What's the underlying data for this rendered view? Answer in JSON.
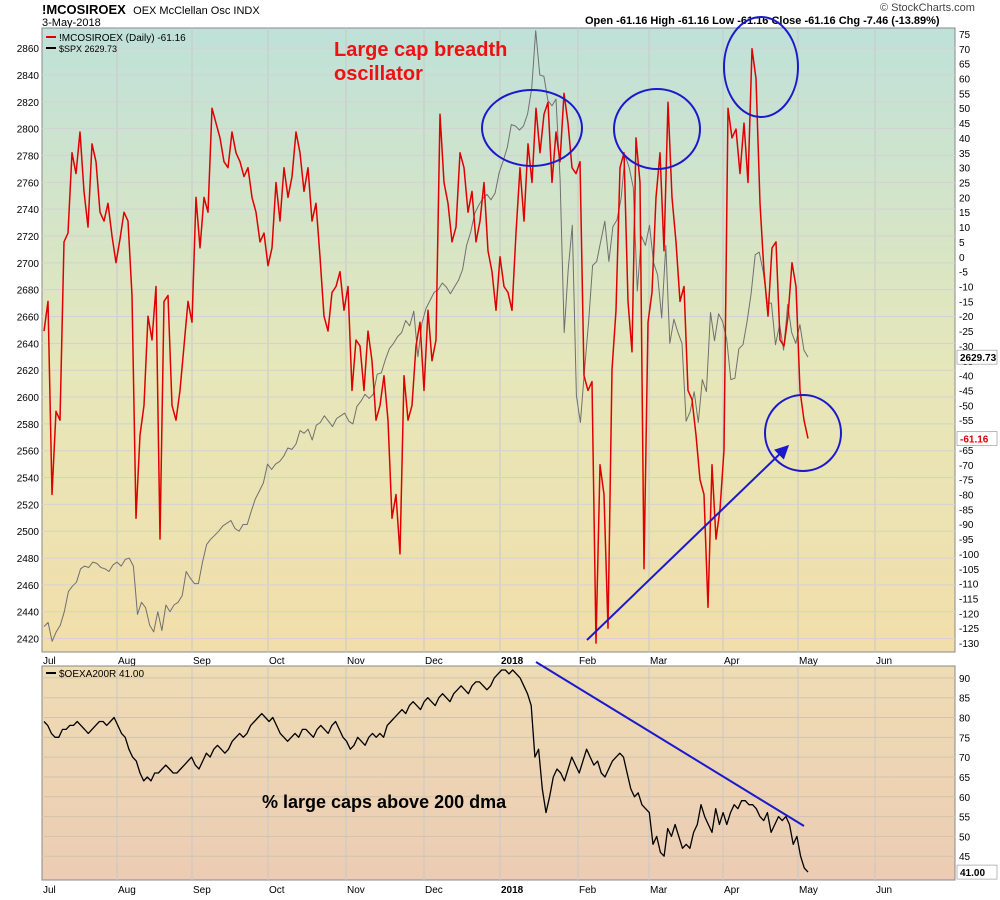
{
  "header": {
    "symbol": "!MCOSIROEX",
    "description": "OEX McClellan Osc INDX",
    "date": "3-May-2018",
    "quote": "Open -61.16 High -61.16 Low -61.16 Close -61.16 Chg -7.46 (-13.89%)",
    "source": "© StockCharts.com"
  },
  "annotations": {
    "top_title": "Large cap breadth oscillator",
    "bottom_title": "% large caps above 200 dma"
  },
  "colors": {
    "osc": "#e00000",
    "spx": "#707070",
    "pct": "#000000",
    "annotation_red": "#ee1111",
    "annotation_blue": "#1a1acc"
  },
  "chart_data": [
    {
      "type": "line",
      "legend": [
        "!MCOSIROEX (Daily) -61.16",
        "$SPX 2629.73"
      ],
      "x_ticks": [
        "Jul",
        "Aug",
        "Sep",
        "Oct",
        "Nov",
        "Dec",
        "2018",
        "Feb",
        "Mar",
        "Apr",
        "May",
        "Jun"
      ],
      "grid": true,
      "left_axis": {
        "ylim": [
          2410,
          2875
        ],
        "ticks": [
          2420,
          2440,
          2460,
          2480,
          2500,
          2520,
          2540,
          2560,
          2580,
          2600,
          2620,
          2640,
          2660,
          2680,
          2700,
          2720,
          2740,
          2760,
          2780,
          2800,
          2820,
          2840,
          2860
        ]
      },
      "right_axis": {
        "ylim": [
          -133,
          77
        ],
        "ticks": [
          -130,
          -125,
          -120,
          -115,
          -110,
          -105,
          -100,
          -95,
          -90,
          -85,
          -80,
          -75,
          -70,
          -65,
          -60,
          -55,
          -50,
          -45,
          -40,
          -35,
          -30,
          -25,
          -20,
          -15,
          -10,
          -5,
          0,
          5,
          10,
          15,
          20,
          25,
          30,
          35,
          40,
          45,
          50,
          55,
          60,
          65,
          70,
          75
        ]
      },
      "last_labels": {
        "spx": "2629.73",
        "osc": "-61.16"
      },
      "series": [
        {
          "name": "!MCOSIROEX (Daily) -61.16",
          "axis": "right",
          "date_range": [
            "2017-07-03",
            "2018-05-03"
          ],
          "values": [
            -25,
            -15,
            -80,
            -52,
            -55,
            5,
            8,
            35,
            28,
            42,
            22,
            10,
            38,
            32,
            15,
            12,
            18,
            7,
            -2,
            6,
            15,
            12,
            -13,
            -88,
            -60,
            -50,
            -20,
            -28,
            -10,
            -95,
            -15,
            -13,
            -50,
            -55,
            -45,
            -30,
            -15,
            -22,
            20,
            3,
            20,
            15,
            50,
            45,
            40,
            32,
            30,
            42,
            35,
            32,
            27,
            30,
            20,
            15,
            5,
            8,
            -3,
            3,
            25,
            12,
            30,
            20,
            27,
            42,
            35,
            22,
            30,
            12,
            18,
            0,
            -20,
            -25,
            -12,
            -10,
            -5,
            -18,
            -10,
            -45,
            -28,
            -30,
            -45,
            -25,
            -35,
            -55,
            -50,
            -40,
            -55,
            -88,
            -80,
            -100,
            -40,
            -55,
            -50,
            -30,
            -22,
            -45,
            -18,
            -35,
            -28,
            48,
            25,
            18,
            5,
            10,
            35,
            30,
            15,
            22,
            5,
            12,
            25,
            2,
            -5,
            -18,
            0,
            -10,
            -12,
            -18,
            8,
            30,
            12,
            38,
            25,
            50,
            35,
            48,
            52,
            25,
            42,
            32,
            55,
            45,
            30,
            28,
            32,
            -40,
            -45,
            -42,
            -130,
            -70,
            -80,
            -125,
            -38,
            -18,
            30,
            35,
            -15,
            -32,
            40,
            25,
            -105,
            -22,
            -12,
            20,
            35,
            2,
            52,
            20,
            5,
            -15,
            -10,
            -45,
            -48,
            -60,
            -75,
            -80,
            -118,
            -70,
            -95,
            -85,
            -65,
            50,
            40,
            43,
            28,
            45,
            25,
            70,
            60,
            18,
            -5,
            -20,
            3,
            5,
            -28,
            -30,
            -20,
            -2,
            -10,
            -45,
            -55,
            -61.16
          ]
        },
        {
          "name": "$SPX 2629.73",
          "axis": "left",
          "date_range": [
            "2017-07-03",
            "2018-05-03"
          ],
          "values": [
            2429,
            2432,
            2418,
            2425,
            2430,
            2440,
            2455,
            2459,
            2462,
            2472,
            2474,
            2473,
            2477,
            2476,
            2473,
            2472,
            2470,
            2475,
            2477,
            2474,
            2479,
            2480,
            2474,
            2438,
            2447,
            2443,
            2430,
            2425,
            2440,
            2426,
            2445,
            2440,
            2445,
            2447,
            2452,
            2470,
            2465,
            2461,
            2461,
            2477,
            2490,
            2494,
            2497,
            2500,
            2504,
            2506,
            2508,
            2502,
            2500,
            2505,
            2505,
            2515,
            2524,
            2530,
            2536,
            2550,
            2546,
            2550,
            2552,
            2556,
            2562,
            2561,
            2565,
            2575,
            2573,
            2576,
            2568,
            2579,
            2581,
            2586,
            2582,
            2578,
            2584,
            2586,
            2588,
            2582,
            2580,
            2593,
            2597,
            2602,
            2599,
            2602,
            2617,
            2618,
            2628,
            2636,
            2640,
            2645,
            2648,
            2657,
            2653,
            2664,
            2630,
            2655,
            2666,
            2672,
            2678,
            2680,
            2685,
            2682,
            2677,
            2682,
            2687,
            2695,
            2713,
            2723,
            2737,
            2743,
            2748,
            2751,
            2747,
            2752,
            2767,
            2776,
            2786,
            2803,
            2802,
            2799,
            2802,
            2811,
            2830,
            2873,
            2840,
            2839,
            2821,
            2817,
            2822,
            2762,
            2648,
            2695,
            2728,
            2601,
            2581,
            2620,
            2656,
            2698,
            2701,
            2716,
            2731,
            2701,
            2727,
            2732,
            2748,
            2780,
            2771,
            2756,
            2679,
            2720,
            2713,
            2728,
            2700,
            2691,
            2659,
            2713,
            2640,
            2658,
            2648,
            2640,
            2582,
            2589,
            2604,
            2581,
            2613,
            2604,
            2663,
            2642,
            2662,
            2656,
            2643,
            2613,
            2614,
            2636,
            2639,
            2656,
            2677,
            2706,
            2708,
            2693,
            2670,
            2670,
            2639,
            2654,
            2635,
            2669,
            2648,
            2640,
            2654,
            2635,
            2629.73
          ]
        }
      ]
    },
    {
      "type": "line",
      "legend": [
        "$OEXA200R 41.00"
      ],
      "x_ticks": [
        "Jul",
        "Aug",
        "Sep",
        "Oct",
        "Nov",
        "Dec",
        "2018",
        "Feb",
        "Mar",
        "Apr",
        "May",
        "Jun"
      ],
      "grid": true,
      "right_axis": {
        "ylim": [
          39,
          93
        ],
        "ticks": [
          45,
          50,
          55,
          60,
          65,
          70,
          75,
          80,
          85,
          90
        ]
      },
      "last_labels": {
        "pct": "41.00"
      },
      "series": [
        {
          "name": "$OEXA200R 41.00",
          "axis": "right",
          "date_range": [
            "2017-07-03",
            "2018-05-03"
          ],
          "values": [
            79,
            78,
            76,
            75,
            75,
            77,
            77,
            78,
            78,
            79,
            78,
            77,
            76,
            77,
            78,
            79,
            79,
            78,
            79,
            80,
            78,
            76,
            75,
            72,
            70,
            69,
            66,
            64,
            65,
            64,
            66,
            66,
            67,
            68,
            67,
            66,
            66,
            67,
            68,
            69,
            70,
            68,
            67,
            69,
            71,
            70,
            72,
            73,
            72,
            71,
            72,
            74,
            75,
            76,
            75,
            76,
            78,
            79,
            80,
            81,
            80,
            79,
            80,
            78,
            76,
            75,
            74,
            75,
            76,
            75,
            77,
            77,
            76,
            75,
            77,
            78,
            77,
            76,
            78,
            79,
            77,
            75,
            74,
            72,
            73,
            75,
            74,
            73,
            75,
            76,
            75,
            76,
            75,
            78,
            79,
            80,
            81,
            82,
            81,
            83,
            84,
            83,
            82,
            84,
            85,
            84,
            83,
            85,
            86,
            85,
            84,
            86,
            87,
            88,
            87,
            86,
            88,
            89,
            89,
            88,
            87,
            88,
            90,
            91,
            92,
            92,
            91,
            92,
            91,
            90,
            88,
            86,
            83,
            70,
            72,
            62,
            56,
            60,
            65,
            67,
            66,
            64,
            67,
            70,
            68,
            66,
            69,
            72,
            70,
            68,
            69,
            66,
            65,
            67,
            69,
            70,
            71,
            70,
            66,
            62,
            60,
            61,
            58,
            57,
            56,
            48,
            50,
            46,
            45,
            52,
            50,
            53,
            50,
            47,
            48,
            47,
            51,
            53,
            58,
            55,
            53,
            51,
            57,
            53,
            56,
            53,
            56,
            58,
            57,
            59,
            59,
            58,
            58,
            57,
            55,
            54,
            56,
            51,
            53,
            55,
            54,
            55,
            53,
            48,
            50,
            45,
            42,
            41
          ]
        }
      ]
    }
  ]
}
